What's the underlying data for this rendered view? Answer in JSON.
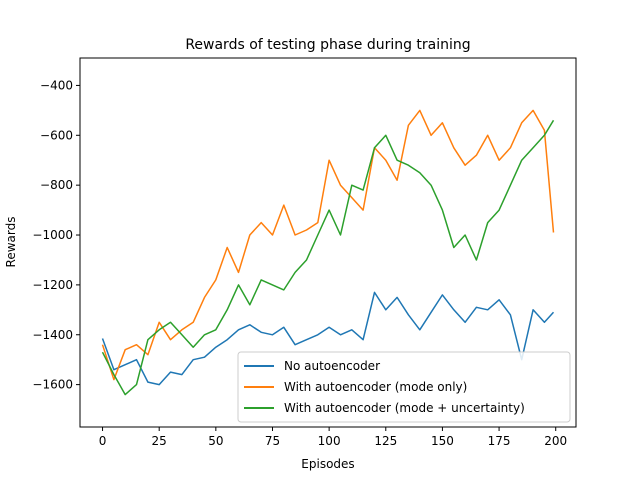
{
  "chart_data": {
    "type": "line",
    "title": "Rewards of testing phase during training",
    "xlabel": "Episodes",
    "ylabel": "Rewards",
    "xlim": [
      -9.95,
      208.95
    ],
    "ylim": [
      -1770,
      -290
    ],
    "xticks": [
      0,
      25,
      50,
      75,
      100,
      125,
      150,
      175,
      200
    ],
    "yticks": [
      -1600,
      -1400,
      -1200,
      -1000,
      -800,
      -600,
      -400
    ],
    "grid": false,
    "legend_position": "lower-right",
    "x": [
      0,
      5,
      10,
      15,
      20,
      25,
      30,
      35,
      40,
      45,
      50,
      55,
      60,
      65,
      70,
      75,
      80,
      85,
      90,
      95,
      100,
      105,
      110,
      115,
      120,
      125,
      130,
      135,
      140,
      145,
      150,
      155,
      160,
      165,
      170,
      175,
      180,
      185,
      190,
      195,
      199
    ],
    "series": [
      {
        "name": "No autoencoder",
        "color": "#1f77b4",
        "values": [
          -1415,
          -1540,
          -1520,
          -1500,
          -1590,
          -1600,
          -1550,
          -1560,
          -1500,
          -1490,
          -1450,
          -1420,
          -1380,
          -1360,
          -1390,
          -1400,
          -1370,
          -1440,
          -1420,
          -1400,
          -1370,
          -1400,
          -1380,
          -1420,
          -1230,
          -1300,
          -1250,
          -1320,
          -1380,
          -1310,
          -1240,
          -1300,
          -1350,
          -1290,
          -1300,
          -1260,
          -1320,
          -1500,
          -1300,
          -1350,
          -1310
        ]
      },
      {
        "name": "With autoencoder (mode only)",
        "color": "#ff7f0e",
        "values": [
          -1440,
          -1580,
          -1460,
          -1440,
          -1480,
          -1350,
          -1420,
          -1380,
          -1350,
          -1250,
          -1180,
          -1050,
          -1150,
          -1000,
          -950,
          -1000,
          -880,
          -1000,
          -980,
          -950,
          -700,
          -800,
          -850,
          -900,
          -650,
          -700,
          -780,
          -560,
          -500,
          -600,
          -550,
          -650,
          -720,
          -680,
          -600,
          -700,
          -650,
          -550,
          -500,
          -580,
          -990
        ]
      },
      {
        "name": "With autoencoder (mode + uncertainty)",
        "color": "#2ca02c",
        "values": [
          -1470,
          -1560,
          -1640,
          -1600,
          -1420,
          -1380,
          -1350,
          -1400,
          -1450,
          -1400,
          -1380,
          -1300,
          -1200,
          -1280,
          -1180,
          -1200,
          -1220,
          -1150,
          -1100,
          -1000,
          -900,
          -1000,
          -800,
          -820,
          -650,
          -600,
          -700,
          -720,
          -750,
          -800,
          -900,
          -1050,
          -1000,
          -1100,
          -950,
          -900,
          -800,
          -700,
          -650,
          -600,
          -540
        ]
      }
    ]
  }
}
